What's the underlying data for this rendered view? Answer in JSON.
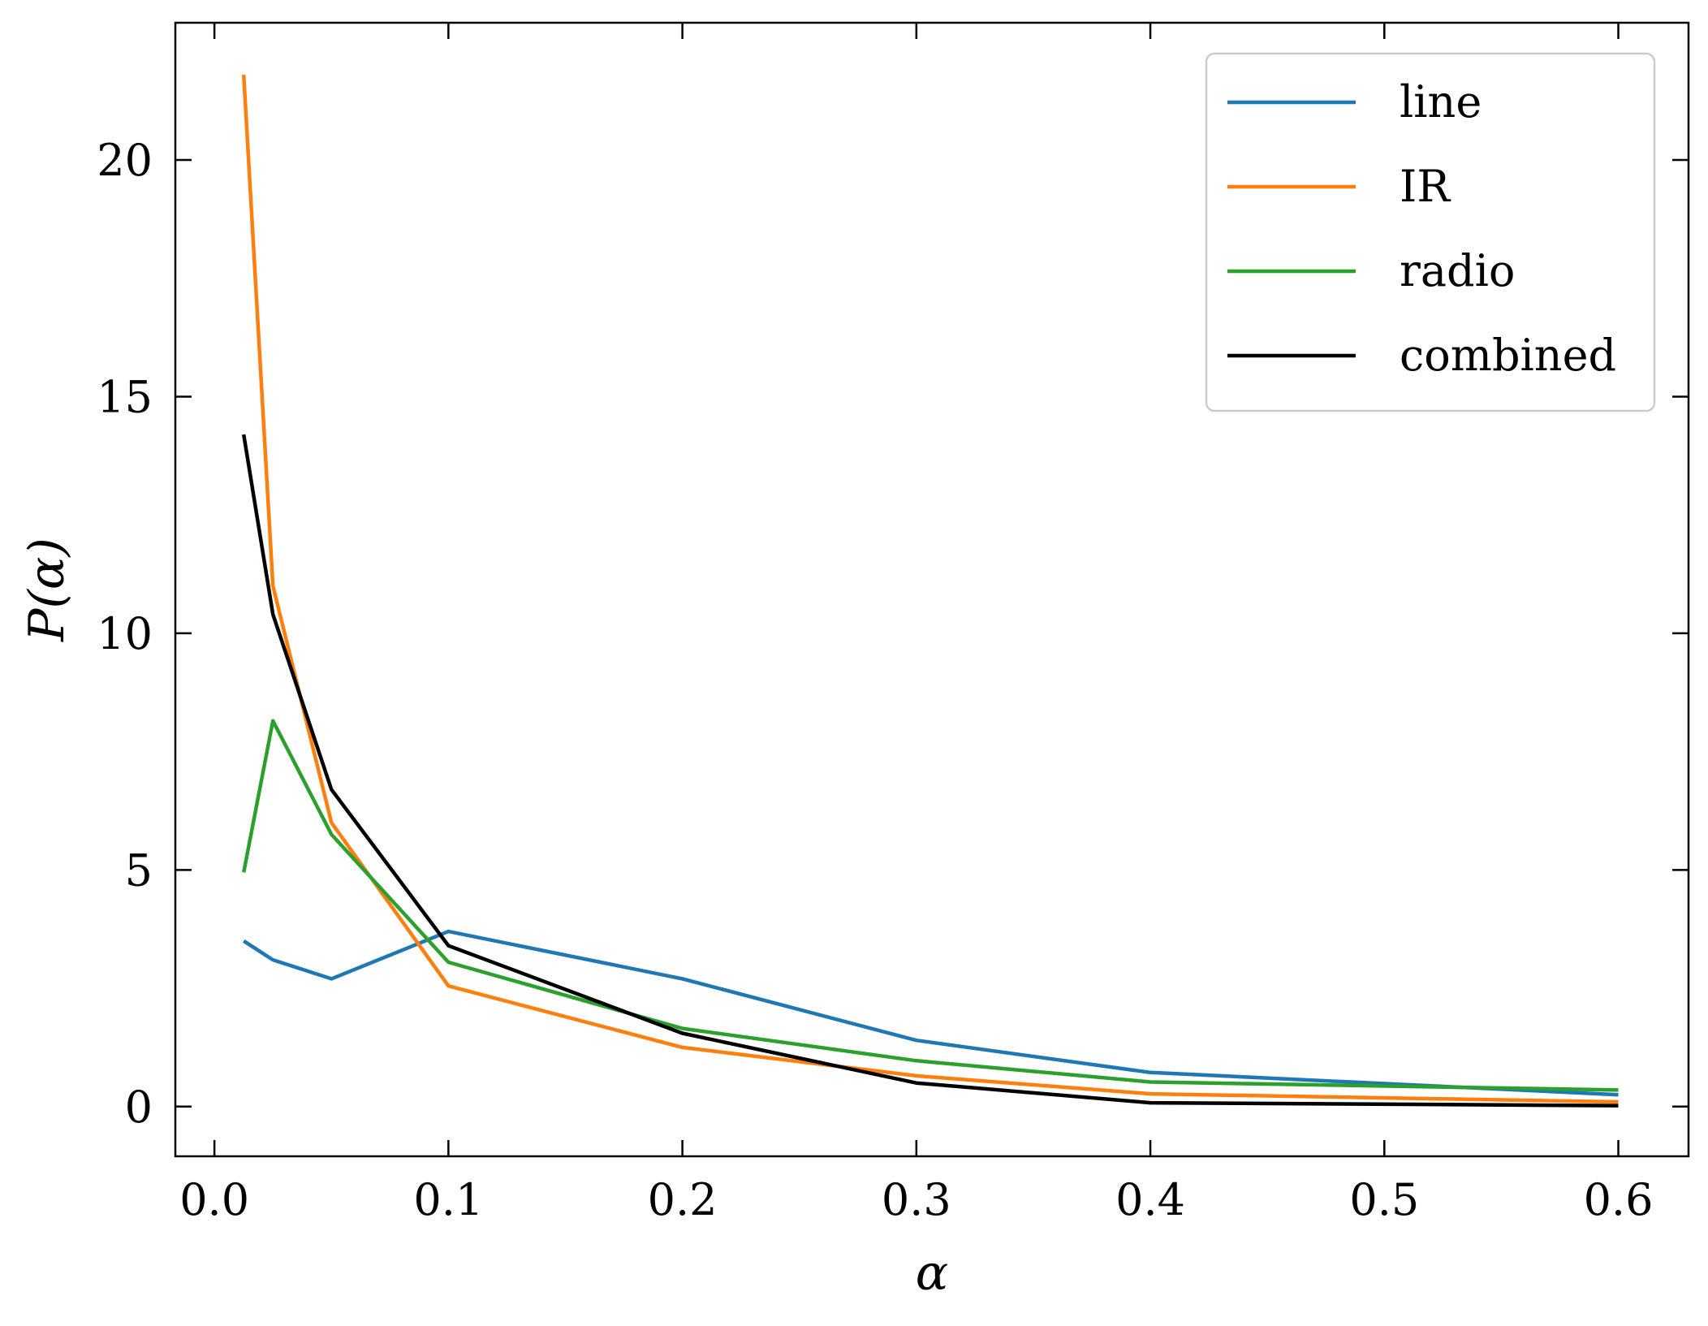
{
  "chart_data": {
    "type": "line",
    "xlabel": "α",
    "ylabel": "P(α)",
    "xlim": [
      -0.0167,
      0.63
    ],
    "ylim": [
      -1.05,
      22.9
    ],
    "xticks": [
      0.0,
      0.1,
      0.2,
      0.3,
      0.4,
      0.5,
      0.6
    ],
    "yticks": [
      0,
      5,
      10,
      15,
      20
    ],
    "xtick_labels": [
      "0.0",
      "0.1",
      "0.2",
      "0.3",
      "0.4",
      "0.5",
      "0.6"
    ],
    "ytick_labels": [
      "0",
      "5",
      "10",
      "15",
      "20"
    ],
    "ticks_direction": "in",
    "ticks_on_all_sides": true,
    "grid": false,
    "legend_position": "top-right",
    "x": [
      0.0125,
      0.025,
      0.05,
      0.1,
      0.2,
      0.3,
      0.4,
      0.6
    ],
    "series": [
      {
        "name": "line",
        "color": "#1f77b4",
        "values": [
          3.5,
          3.1,
          2.7,
          3.7,
          2.7,
          1.4,
          0.72,
          0.25
        ]
      },
      {
        "name": "IR",
        "color": "#ff7f0e",
        "values": [
          21.8,
          11.0,
          6.0,
          2.55,
          1.25,
          0.65,
          0.27,
          0.1
        ]
      },
      {
        "name": "radio",
        "color": "#2ca02c",
        "values": [
          4.95,
          8.15,
          5.75,
          3.05,
          1.65,
          0.97,
          0.52,
          0.35
        ]
      },
      {
        "name": "combined",
        "color": "#000000",
        "values": [
          14.2,
          10.4,
          6.7,
          3.4,
          1.55,
          0.5,
          0.08,
          0.02
        ]
      }
    ]
  }
}
